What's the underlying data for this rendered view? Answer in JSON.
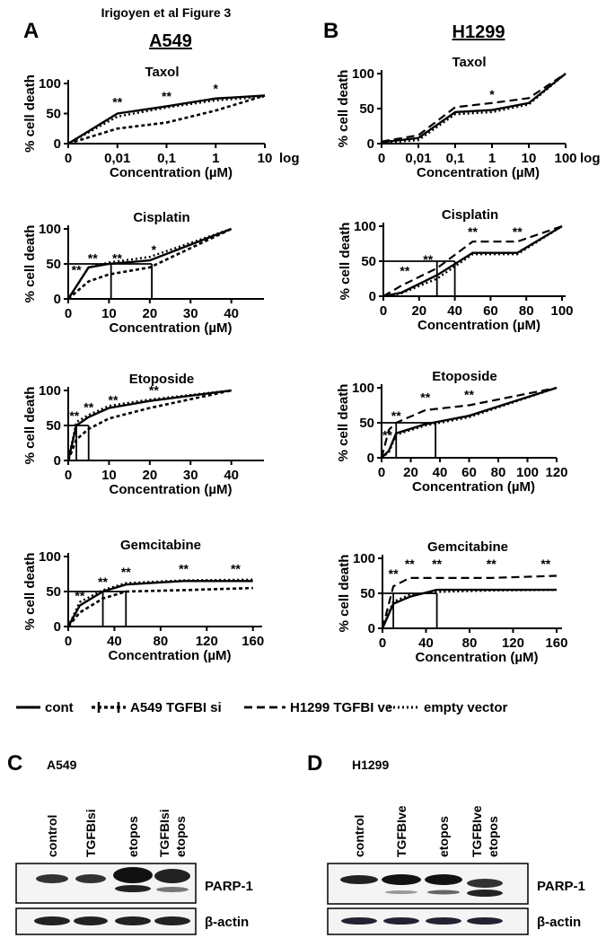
{
  "figure_title": "Irigoyen et al Figure 3",
  "panels": [
    {
      "letter": "A",
      "title": "A549"
    },
    {
      "letter": "B",
      "title": "H1299"
    },
    {
      "letter": "C",
      "title": "A549"
    },
    {
      "letter": "D",
      "title": "H1299"
    }
  ],
  "legend": [
    {
      "label": "cont",
      "style": "solid"
    },
    {
      "label": "A549 TGFBI si",
      "style": "plus"
    },
    {
      "label": "H1299 TGFBI ve",
      "style": "dashed"
    },
    {
      "label": "empty vector",
      "style": "dotted"
    }
  ],
  "chart_data": [
    {
      "type": "line",
      "title": "Taxol",
      "xlabel": "Concentration (µM)",
      "ylabel": "% cell death",
      "x_note": "log",
      "categories": [
        "0",
        "0,01",
        "0,1",
        "1",
        "10"
      ],
      "ylim": [
        0,
        100
      ],
      "yticks": [
        0,
        50,
        100
      ],
      "series": [
        {
          "name": "cont",
          "style": "solid",
          "color": "#000000",
          "values": [
            0,
            50,
            62,
            75,
            80
          ]
        },
        {
          "name": "A549 TGFBI si",
          "style": "plus",
          "color": "#000000",
          "values": [
            0,
            25,
            35,
            55,
            80
          ]
        },
        {
          "name": "empty vector",
          "style": "dotted",
          "color": "#000000",
          "values": [
            0,
            45,
            60,
            72,
            78
          ]
        }
      ],
      "annotations": [
        {
          "text": "**",
          "category": "0,01",
          "y": 62
        },
        {
          "text": "**",
          "category": "0,1",
          "y": 72
        },
        {
          "text": "*",
          "category": "1",
          "y": 84
        }
      ]
    },
    {
      "type": "line",
      "title": "Cisplatin",
      "xlabel": "Concentration (µM)",
      "ylabel": "% cell death",
      "xlim": [
        0,
        48
      ],
      "xticks": [
        0,
        10,
        20,
        30,
        40
      ],
      "ylim": [
        0,
        100
      ],
      "yticks": [
        0,
        50,
        100
      ],
      "x": [
        0,
        5,
        10,
        20,
        40
      ],
      "series": [
        {
          "name": "cont",
          "style": "solid",
          "color": "#000000",
          "values": [
            0,
            45,
            50,
            55,
            100
          ]
        },
        {
          "name": "A549 TGFBI si",
          "style": "plus",
          "color": "#000000",
          "values": [
            0,
            25,
            35,
            45,
            100
          ]
        },
        {
          "name": "empty vector",
          "style": "dotted",
          "color": "#000000",
          "values": [
            0,
            45,
            52,
            60,
            100
          ]
        }
      ],
      "reference_y": 50,
      "reference_x": [
        10.5,
        20.5
      ],
      "annotations": [
        {
          "text": "**",
          "x": 2,
          "y": 35
        },
        {
          "text": "**",
          "x": 6,
          "y": 52
        },
        {
          "text": "**",
          "x": 12,
          "y": 52
        },
        {
          "text": "*",
          "x": 21,
          "y": 64
        }
      ]
    },
    {
      "type": "line",
      "title": "Etoposide",
      "xlabel": "Concentration (µM)",
      "ylabel": "% cell death",
      "xlim": [
        0,
        48
      ],
      "xticks": [
        0,
        10,
        20,
        30,
        40
      ],
      "ylim": [
        0,
        100
      ],
      "yticks": [
        0,
        50,
        100
      ],
      "x": [
        0,
        2,
        5,
        10,
        20,
        40
      ],
      "series": [
        {
          "name": "cont",
          "style": "solid",
          "color": "#000000",
          "values": [
            0,
            50,
            62,
            75,
            85,
            100
          ]
        },
        {
          "name": "A549 TGFBI si",
          "style": "plus",
          "color": "#000000",
          "values": [
            0,
            30,
            45,
            60,
            75,
            100
          ]
        },
        {
          "name": "empty vector",
          "style": "dotted",
          "color": "#000000",
          "values": [
            0,
            55,
            65,
            78,
            87,
            100
          ]
        }
      ],
      "reference_y": 50,
      "reference_x": [
        2,
        5
      ],
      "annotations": [
        {
          "text": "**",
          "x": 1.5,
          "y": 58
        },
        {
          "text": "**",
          "x": 5,
          "y": 70
        },
        {
          "text": "**",
          "x": 11,
          "y": 80
        },
        {
          "text": "**",
          "x": 21,
          "y": 94
        }
      ]
    },
    {
      "type": "line",
      "title": "Gemcitabine",
      "xlabel": "Concentration (µM)",
      "ylabel": "% cell death",
      "xlim": [
        0,
        168
      ],
      "xticks": [
        0,
        40,
        80,
        120,
        160
      ],
      "ylim": [
        0,
        100
      ],
      "yticks": [
        0,
        50,
        100
      ],
      "x": [
        0,
        10,
        30,
        50,
        100,
        160
      ],
      "series": [
        {
          "name": "cont",
          "style": "solid",
          "color": "#000000",
          "values": [
            0,
            30,
            50,
            60,
            65,
            65
          ]
        },
        {
          "name": "A549 TGFBI si",
          "style": "plus",
          "color": "#000000",
          "values": [
            0,
            20,
            40,
            50,
            52,
            55
          ]
        },
        {
          "name": "empty vector",
          "style": "dotted",
          "color": "#000000",
          "values": [
            0,
            35,
            52,
            62,
            66,
            67
          ]
        }
      ],
      "reference_y": 50,
      "reference_x": [
        30,
        50
      ],
      "annotations": [
        {
          "text": "**",
          "x": 10,
          "y": 38
        },
        {
          "text": "**",
          "x": 30,
          "y": 58
        },
        {
          "text": "**",
          "x": 50,
          "y": 72
        },
        {
          "text": "**",
          "x": 100,
          "y": 76
        },
        {
          "text": "**",
          "x": 145,
          "y": 76
        }
      ]
    },
    {
      "type": "line",
      "title": "Taxol",
      "xlabel": "Concentration (µM)",
      "ylabel": "% cell death",
      "x_note": "log",
      "categories": [
        "0",
        "0,01",
        "0,1",
        "1",
        "10",
        "100"
      ],
      "ylim": [
        0,
        100
      ],
      "yticks": [
        0,
        50,
        100
      ],
      "series": [
        {
          "name": "cont",
          "style": "solid",
          "color": "#000000",
          "values": [
            2,
            8,
            45,
            48,
            58,
            100
          ]
        },
        {
          "name": "H1299 TGFBI ve",
          "style": "dashed",
          "color": "#000000",
          "values": [
            3,
            12,
            52,
            58,
            65,
            100
          ]
        },
        {
          "name": "empty vector",
          "style": "dotted",
          "color": "#000000",
          "values": [
            1,
            5,
            42,
            45,
            56,
            100
          ]
        }
      ],
      "annotations": [
        {
          "text": "*",
          "category": "1",
          "y": 64
        }
      ]
    },
    {
      "type": "line",
      "title": "Cisplatin",
      "xlabel": "Concentration (µM)",
      "ylabel": "% cell death",
      "xlim": [
        0,
        102
      ],
      "xticks": [
        0,
        20,
        40,
        60,
        80,
        100
      ],
      "ylim": [
        0,
        100
      ],
      "yticks": [
        0,
        50,
        100
      ],
      "x": [
        0,
        10,
        30,
        50,
        75,
        100
      ],
      "series": [
        {
          "name": "cont",
          "style": "solid",
          "color": "#000000",
          "values": [
            0,
            5,
            30,
            62,
            62,
            100
          ]
        },
        {
          "name": "H1299 TGFBI ve",
          "style": "dashed",
          "color": "#000000",
          "values": [
            0,
            15,
            40,
            78,
            78,
            100
          ]
        },
        {
          "name": "empty vector",
          "style": "dotted",
          "color": "#000000",
          "values": [
            0,
            4,
            25,
            60,
            60,
            100
          ]
        }
      ],
      "reference_y": 50,
      "reference_x": [
        30,
        40
      ],
      "annotations": [
        {
          "text": "**",
          "x": 12,
          "y": 30
        },
        {
          "text": "**",
          "x": 25,
          "y": 46
        },
        {
          "text": "**",
          "x": 50,
          "y": 86
        },
        {
          "text": "**",
          "x": 75,
          "y": 86
        }
      ]
    },
    {
      "type": "line",
      "title": "Etoposide",
      "xlabel": "Concentration (µM)",
      "ylabel": "% cell death",
      "xlim": [
        0,
        120
      ],
      "xticks": [
        0,
        20,
        40,
        60,
        80,
        100,
        120
      ],
      "ylim": [
        0,
        100
      ],
      "yticks": [
        0,
        50,
        100
      ],
      "x": [
        0,
        5,
        10,
        30,
        60,
        120
      ],
      "series": [
        {
          "name": "cont",
          "style": "solid",
          "color": "#000000",
          "values": [
            0,
            10,
            35,
            48,
            60,
            100
          ]
        },
        {
          "name": "H1299 TGFBI ve",
          "style": "dashed",
          "color": "#000000",
          "values": [
            0,
            40,
            50,
            68,
            75,
            100
          ]
        },
        {
          "name": "empty vector",
          "style": "dotted",
          "color": "#000000",
          "values": [
            0,
            8,
            33,
            46,
            58,
            100
          ]
        }
      ],
      "reference_y": 50,
      "reference_x": [
        10,
        37
      ],
      "annotations": [
        {
          "text": "**",
          "x": 4,
          "y": 26
        },
        {
          "text": "**",
          "x": 10,
          "y": 54
        },
        {
          "text": "**",
          "x": 30,
          "y": 80
        },
        {
          "text": "**",
          "x": 60,
          "y": 84
        }
      ]
    },
    {
      "type": "line",
      "title": "Gemcitabine",
      "xlabel": "Concentration (µM)",
      "ylabel": "% cell death",
      "xlim": [
        0,
        165
      ],
      "xticks": [
        0,
        40,
        80,
        120,
        160
      ],
      "ylim": [
        0,
        100
      ],
      "yticks": [
        0,
        50,
        100
      ],
      "x": [
        0,
        10,
        25,
        50,
        100,
        160
      ],
      "series": [
        {
          "name": "cont",
          "style": "solid",
          "color": "#000000",
          "values": [
            0,
            35,
            45,
            55,
            55,
            55
          ]
        },
        {
          "name": "H1299 TGFBI ve",
          "style": "dashed",
          "color": "#000000",
          "values": [
            0,
            60,
            72,
            72,
            72,
            75
          ]
        },
        {
          "name": "empty vector",
          "style": "dotted",
          "color": "#000000",
          "values": [
            0,
            38,
            48,
            52,
            54,
            55
          ]
        }
      ],
      "reference_y": 50,
      "reference_x": [
        10,
        50
      ],
      "annotations": [
        {
          "text": "**",
          "x": 10,
          "y": 72
        },
        {
          "text": "**",
          "x": 25,
          "y": 86
        },
        {
          "text": "**",
          "x": 50,
          "y": 86
        },
        {
          "text": "**",
          "x": 100,
          "y": 86
        },
        {
          "text": "**",
          "x": 150,
          "y": 86
        }
      ]
    }
  ],
  "blots": [
    {
      "lanes": [
        [
          "control"
        ],
        [
          "TGFBIsi"
        ],
        [
          "etopos"
        ],
        [
          "TGFBIsi",
          "etopos"
        ]
      ],
      "rows": [
        "PARP-1",
        "β-actin"
      ]
    },
    {
      "lanes": [
        [
          "control"
        ],
        [
          "TGFBIve"
        ],
        [
          "etopos"
        ],
        [
          "TGFBIve",
          "etopos"
        ]
      ],
      "rows": [
        "PARP-1",
        "β-actin"
      ]
    }
  ]
}
